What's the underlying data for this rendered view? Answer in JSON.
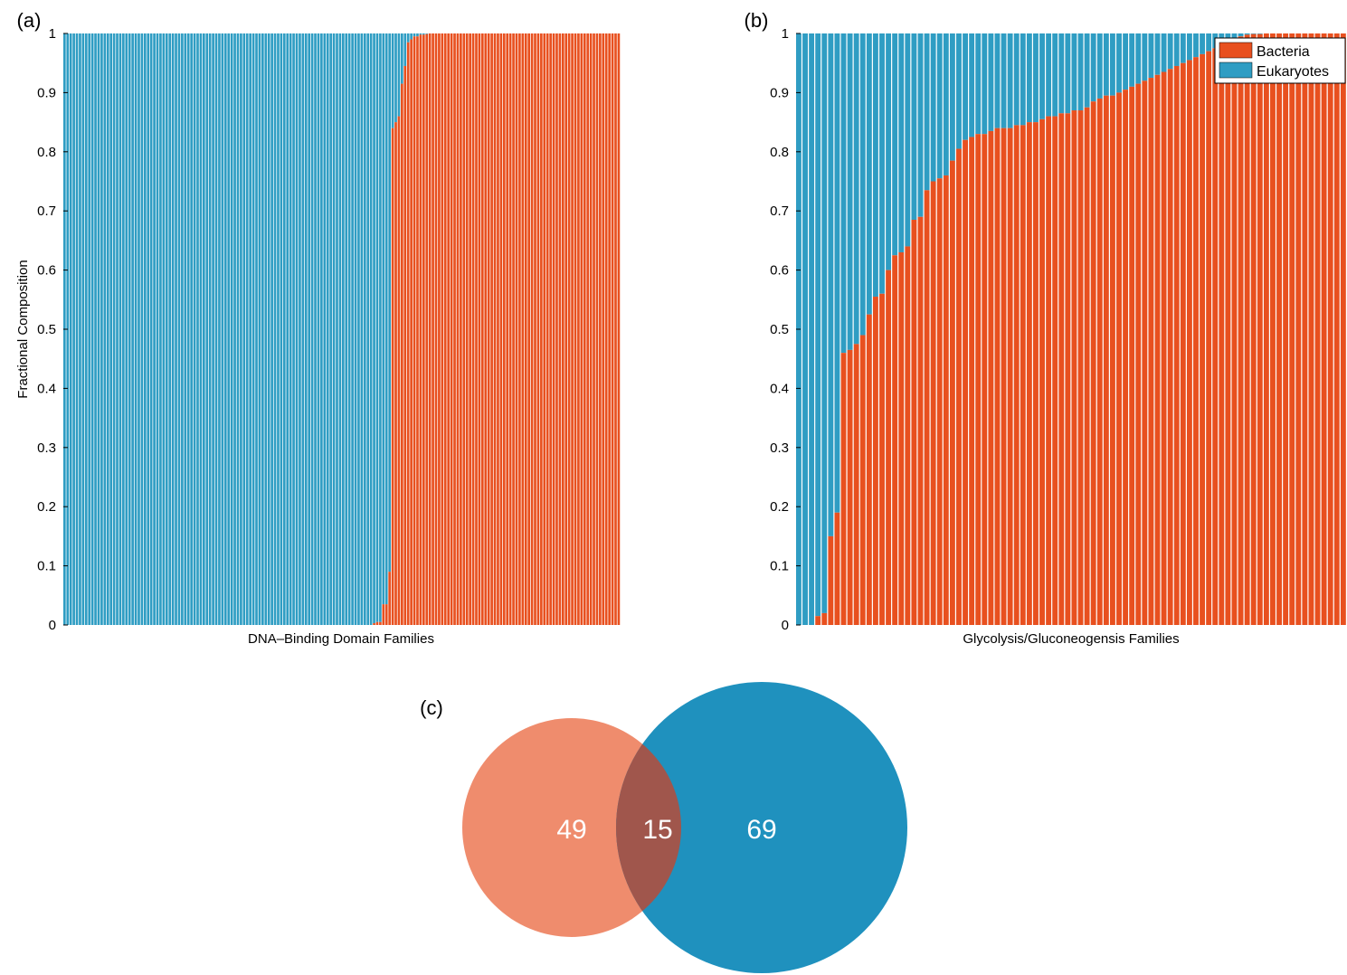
{
  "colors": {
    "bacteria": "#e8501f",
    "eukaryotes": "#2f9dc3",
    "venn_bacteria": "#ef8c6d",
    "venn_eukaryotes": "#1f91be",
    "venn_overlap": "#a0564c",
    "bar_gap": "#ffffff"
  },
  "legend": {
    "bacteria": "Bacteria",
    "eukaryotes": "Eukaryotes"
  },
  "chart_data": [
    {
      "panel": "(a)",
      "type": "bar",
      "stacked": true,
      "xlabel": "DNA–Binding Domain Families",
      "ylabel": "Fractional Composition",
      "ylim": [
        0,
        1
      ],
      "yticks": [
        "0",
        "0.1",
        "0.2",
        "0.3",
        "0.4",
        "0.5",
        "0.6",
        "0.7",
        "0.8",
        "0.9",
        "1"
      ],
      "series": [
        {
          "name": "Bacteria",
          "values": [
            0,
            0,
            0,
            0,
            0,
            0,
            0,
            0,
            0,
            0,
            0,
            0,
            0,
            0,
            0,
            0,
            0,
            0,
            0,
            0,
            0,
            0,
            0,
            0,
            0,
            0,
            0,
            0,
            0,
            0,
            0,
            0,
            0,
            0,
            0,
            0,
            0,
            0,
            0,
            0,
            0,
            0,
            0,
            0,
            0,
            0,
            0,
            0,
            0,
            0,
            0,
            0,
            0,
            0,
            0,
            0,
            0,
            0,
            0,
            0,
            0,
            0,
            0,
            0,
            0,
            0,
            0,
            0,
            0,
            0,
            0,
            0,
            0,
            0,
            0,
            0,
            0,
            0,
            0,
            0,
            0,
            0,
            0,
            0,
            0,
            0,
            0,
            0,
            0,
            0,
            0,
            0,
            0,
            0,
            0,
            0,
            0,
            0,
            0,
            0,
            0.003,
            0.005,
            0.005,
            0.035,
            0.035,
            0.09,
            0.84,
            0.85,
            0.86,
            0.915,
            0.945,
            0.985,
            0.99,
            0.995,
            0.995,
            0.998,
            0.998,
            0.999,
            1,
            1,
            1,
            1,
            1,
            1,
            1,
            1,
            1,
            1,
            1,
            1,
            1,
            1,
            1,
            1,
            1,
            1,
            1,
            1,
            1,
            1,
            1,
            1,
            1,
            1,
            1,
            1,
            1,
            1,
            1,
            1,
            1,
            1,
            1,
            1,
            1,
            1,
            1,
            1,
            1,
            1,
            1,
            1,
            1,
            1,
            1,
            1,
            1,
            1,
            1,
            1,
            1,
            1,
            1,
            1,
            1,
            1,
            1,
            1,
            1,
            1
          ]
        },
        {
          "name": "Eukaryotes",
          "values": "1 - Bacteria"
        }
      ]
    },
    {
      "panel": "(b)",
      "type": "bar",
      "stacked": true,
      "xlabel": "Glycolysis/Gluconeogensis Families",
      "ylabel": "",
      "ylim": [
        0,
        1
      ],
      "yticks": [
        "0",
        "0.1",
        "0.2",
        "0.3",
        "0.4",
        "0.5",
        "0.6",
        "0.7",
        "0.8",
        "0.9",
        "1"
      ],
      "legend_position": "top-right",
      "series": [
        {
          "name": "Bacteria",
          "values": [
            0,
            0,
            0,
            0.015,
            0.02,
            0.15,
            0.19,
            0.46,
            0.465,
            0.475,
            0.49,
            0.525,
            0.555,
            0.56,
            0.6,
            0.625,
            0.63,
            0.64,
            0.685,
            0.69,
            0.735,
            0.75,
            0.755,
            0.76,
            0.785,
            0.805,
            0.82,
            0.825,
            0.83,
            0.83,
            0.835,
            0.84,
            0.84,
            0.84,
            0.845,
            0.845,
            0.85,
            0.85,
            0.855,
            0.86,
            0.86,
            0.865,
            0.865,
            0.87,
            0.87,
            0.875,
            0.885,
            0.89,
            0.895,
            0.895,
            0.9,
            0.905,
            0.91,
            0.915,
            0.92,
            0.925,
            0.93,
            0.935,
            0.94,
            0.945,
            0.95,
            0.955,
            0.96,
            0.965,
            0.97,
            0.975,
            0.98,
            0.985,
            0.99,
            0.995,
            0.998,
            0.999,
            0.999,
            1,
            1,
            1,
            1,
            1,
            1,
            1,
            1,
            1,
            1,
            1,
            1,
            1
          ]
        },
        {
          "name": "Eukaryotes",
          "values": "1 - Bacteria"
        }
      ]
    },
    {
      "panel": "(c)",
      "type": "venn",
      "sets": [
        {
          "name": "Bacteria",
          "only": 49
        },
        {
          "name": "Eukaryotes",
          "only": 69
        }
      ],
      "intersection": 15
    }
  ]
}
